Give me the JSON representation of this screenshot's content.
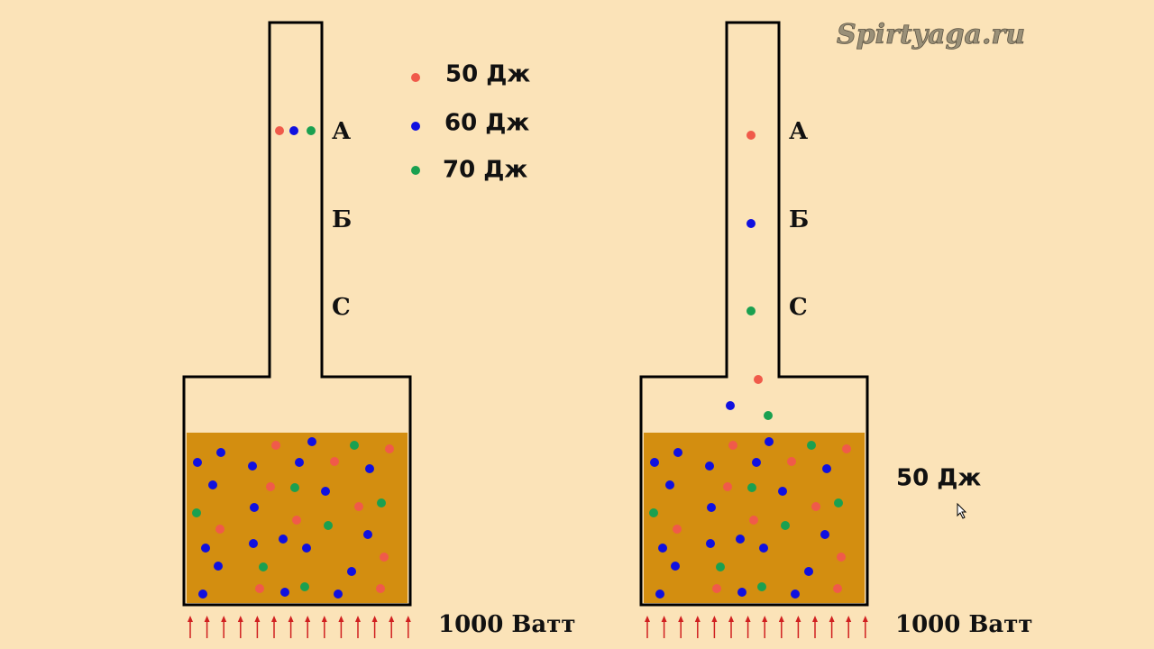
{
  "watermark": "Spirtyaga.ru",
  "legend": [
    {
      "label": "50 Дж"
    },
    {
      "label": "60 Дж"
    },
    {
      "label": "70 Дж"
    }
  ],
  "left": {
    "levels": [
      "А",
      "Б",
      "С"
    ],
    "power": "1000 Ватт"
  },
  "right": {
    "levels": [
      "А",
      "Б",
      "С"
    ],
    "power": "1000 Ватт",
    "energy": "50 Дж"
  }
}
